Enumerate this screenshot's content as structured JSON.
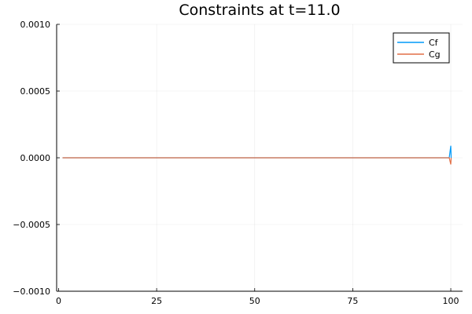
{
  "chart_data": {
    "type": "line",
    "title": "Constraints at t=11.0",
    "xlabel": "",
    "ylabel": "",
    "xlim": [
      -0.5,
      103
    ],
    "ylim": [
      -0.001,
      0.001
    ],
    "xticks": [
      0,
      25,
      50,
      75,
      100
    ],
    "xtick_labels": [
      "0",
      "25",
      "50",
      "75",
      "100"
    ],
    "yticks": [
      -0.001,
      -0.0005,
      0,
      0.0005,
      0.001
    ],
    "ytick_labels": [
      "−0.0010",
      "−0.0005",
      "0.0000",
      "0.0005",
      "0.0010"
    ],
    "grid": true,
    "legend_position": "top-right",
    "series": [
      {
        "name": "Cf",
        "color": "#009AF9",
        "x": [
          1,
          50,
          99,
          99.6,
          100,
          100.1
        ],
        "y": [
          0,
          0,
          0,
          0,
          9e-05,
          0
        ]
      },
      {
        "name": "Cg",
        "color": "#E26F46",
        "x": [
          1,
          50,
          99,
          99.6,
          100,
          100.1
        ],
        "y": [
          0,
          0,
          0,
          0,
          -5e-05,
          0
        ]
      }
    ]
  }
}
